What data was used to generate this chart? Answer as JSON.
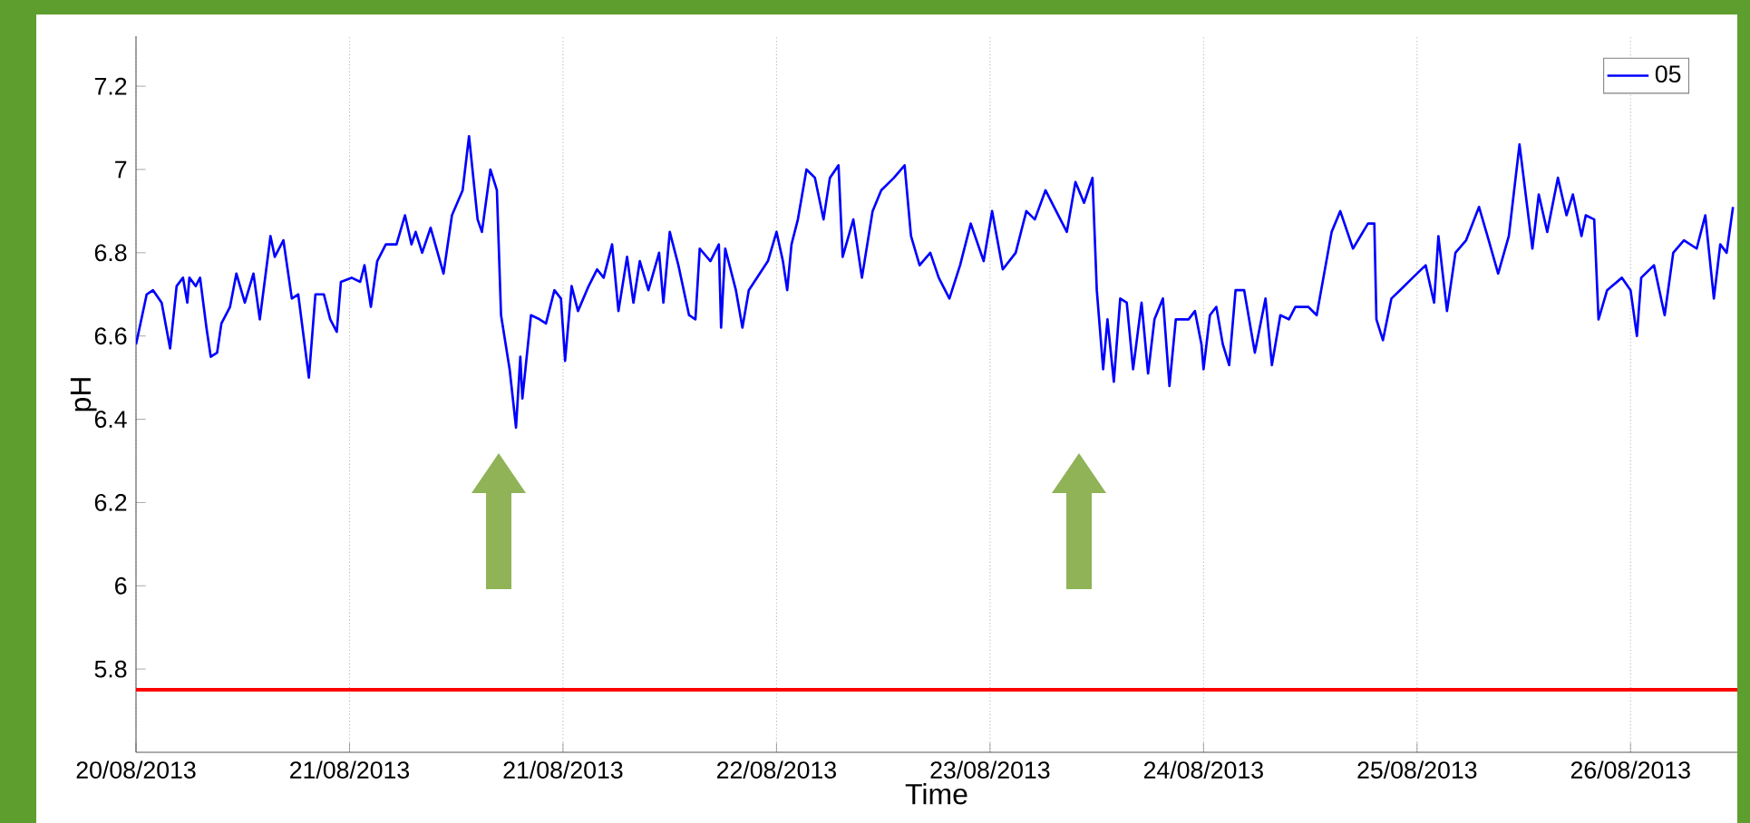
{
  "chart_data": {
    "type": "line",
    "xlabel": "Time",
    "ylabel": "pH",
    "xlim": [
      "2013-08-20T00:00",
      "2013-08-27T12:00"
    ],
    "ylim": [
      5.6,
      7.32
    ],
    "xticks": [
      {
        "value": "2013-08-20",
        "label": "20/08/2013"
      },
      {
        "value": "2013-08-21",
        "label": "21/08/2013"
      },
      {
        "value": "2013-08-22",
        "label": "21/08/2013"
      },
      {
        "value": "2013-08-23",
        "label": "22/08/2013"
      },
      {
        "value": "2013-08-24",
        "label": "23/08/2013"
      },
      {
        "value": "2013-08-25",
        "label": "24/08/2013"
      },
      {
        "value": "2013-08-26",
        "label": "25/08/2013"
      },
      {
        "value": "2013-08-27",
        "label": "26/08/2013"
      }
    ],
    "yticks": [
      5.8,
      6,
      6.2,
      6.4,
      6.6,
      6.8,
      7,
      7.2
    ],
    "grid": "x",
    "legend": "top right",
    "marker": "none",
    "line_style": "solid",
    "ref_lines": [
      {
        "axis": "y",
        "value": 5.75,
        "color": "#ff0000"
      }
    ],
    "series": [
      {
        "name": "05",
        "color": "#0000ff",
        "x": [
          "2013-08-20T00:00",
          "2013-08-20T01:12",
          "2013-08-20T01:55",
          "2013-08-20T02:53",
          "2013-08-20T03:50",
          "2013-08-20T04:34",
          "2013-08-20T05:17",
          "2013-08-20T05:46",
          "2013-08-20T06:00",
          "2013-08-20T06:43",
          "2013-08-20T07:12",
          "2013-08-20T07:55",
          "2013-08-20T08:24",
          "2013-08-20T09:07",
          "2013-08-20T09:36",
          "2013-08-20T10:34",
          "2013-08-20T11:17",
          "2013-08-20T12:14",
          "2013-08-20T13:12",
          "2013-08-20T13:55",
          "2013-08-20T15:07",
          "2013-08-20T15:36",
          "2013-08-20T16:34",
          "2013-08-20T17:31",
          "2013-08-20T18:14",
          "2013-08-20T19:26",
          "2013-08-20T20:10",
          "2013-08-20T21:07",
          "2013-08-20T21:50",
          "2013-08-20T22:34",
          "2013-08-20T23:02",
          "2013-08-21T00:14",
          "2013-08-21T01:12",
          "2013-08-21T01:41",
          "2013-08-21T02:24",
          "2013-08-21T03:07",
          "2013-08-21T04:05",
          "2013-08-21T05:17",
          "2013-08-21T06:14",
          "2013-08-21T06:58",
          "2013-08-21T07:26",
          "2013-08-21T08:10",
          "2013-08-21T09:07",
          "2013-08-21T10:34",
          "2013-08-21T11:31",
          "2013-08-21T12:43",
          "2013-08-21T13:26",
          "2013-08-21T14:24",
          "2013-08-21T14:53",
          "2013-08-21T15:50",
          "2013-08-21T16:34",
          "2013-08-21T17:02",
          "2013-08-21T18:00",
          "2013-08-21T18:43",
          "2013-08-21T19:12",
          "2013-08-21T19:26",
          "2013-08-21T20:24",
          "2013-08-21T21:22",
          "2013-08-21T22:05",
          "2013-08-21T23:02",
          "2013-08-21T23:46",
          "2013-08-22T00:14",
          "2013-08-22T00:58",
          "2013-08-22T01:41",
          "2013-08-22T02:53",
          "2013-08-22T03:50",
          "2013-08-22T04:34",
          "2013-08-22T05:31",
          "2013-08-22T06:14",
          "2013-08-22T07:12",
          "2013-08-22T07:55",
          "2013-08-22T08:38",
          "2013-08-22T09:36",
          "2013-08-22T10:48",
          "2013-08-22T11:17",
          "2013-08-22T12:00",
          "2013-08-22T12:58",
          "2013-08-22T14:10",
          "2013-08-22T14:53",
          "2013-08-22T15:22",
          "2013-08-22T16:34",
          "2013-08-22T17:31",
          "2013-08-22T17:46",
          "2013-08-22T18:14",
          "2013-08-22T19:26",
          "2013-08-22T20:10",
          "2013-08-22T20:53",
          "2013-08-22T23:02",
          "2013-08-23T00:00",
          "2013-08-23T00:43",
          "2013-08-23T01:12",
          "2013-08-23T01:41",
          "2013-08-23T02:24",
          "2013-08-23T03:22",
          "2013-08-23T04:19",
          "2013-08-23T05:17",
          "2013-08-23T06:00",
          "2013-08-23T06:58",
          "2013-08-23T07:26",
          "2013-08-23T08:38",
          "2013-08-23T09:36",
          "2013-08-23T10:48",
          "2013-08-23T11:46",
          "2013-08-23T13:12",
          "2013-08-23T14:24",
          "2013-08-23T15:07",
          "2013-08-23T16:05",
          "2013-08-23T17:17",
          "2013-08-23T18:14",
          "2013-08-23T19:26",
          "2013-08-23T20:38",
          "2013-08-23T21:50",
          "2013-08-23T23:17",
          "2013-08-24T00:14",
          "2013-08-24T01:26",
          "2013-08-24T02:53",
          "2013-08-24T04:05",
          "2013-08-24T05:02",
          "2013-08-24T06:14",
          "2013-08-24T07:26",
          "2013-08-24T08:38",
          "2013-08-24T09:36",
          "2013-08-24T10:34",
          "2013-08-24T11:31",
          "2013-08-24T12:00",
          "2013-08-24T12:43",
          "2013-08-24T13:12",
          "2013-08-24T13:55",
          "2013-08-24T14:38",
          "2013-08-24T15:22",
          "2013-08-24T16:05",
          "2013-08-24T17:02",
          "2013-08-24T17:46",
          "2013-08-24T18:29",
          "2013-08-24T19:26",
          "2013-08-24T20:10",
          "2013-08-24T20:53",
          "2013-08-24T21:50",
          "2013-08-24T22:19",
          "2013-08-24T23:02",
          "2013-08-24T23:46",
          "2013-08-25T00:00",
          "2013-08-25T00:43",
          "2013-08-25T01:26",
          "2013-08-25T02:10",
          "2013-08-25T02:53",
          "2013-08-25T03:36",
          "2013-08-25T04:34",
          "2013-08-25T05:46",
          "2013-08-25T06:58",
          "2013-08-25T07:41",
          "2013-08-25T08:38",
          "2013-08-25T09:36",
          "2013-08-25T10:19",
          "2013-08-25T11:46",
          "2013-08-25T12:43",
          "2013-08-25T14:24",
          "2013-08-25T15:22",
          "2013-08-25T16:48",
          "2013-08-25T18:29",
          "2013-08-25T19:12",
          "2013-08-25T19:26",
          "2013-08-25T20:10",
          "2013-08-25T21:07",
          "2013-08-25T22:05",
          "2013-08-25T23:31",
          "2013-08-26T00:58",
          "2013-08-26T01:55",
          "2013-08-26T02:24",
          "2013-08-26T03:22",
          "2013-08-26T04:19",
          "2013-08-26T05:31",
          "2013-08-26T06:58",
          "2013-08-26T07:55",
          "2013-08-26T09:07",
          "2013-08-26T10:19",
          "2013-08-26T11:31",
          "2013-08-26T12:58",
          "2013-08-26T13:41",
          "2013-08-26T14:38",
          "2013-08-26T15:50",
          "2013-08-26T16:48",
          "2013-08-26T17:31",
          "2013-08-26T18:29",
          "2013-08-26T18:58",
          "2013-08-26T19:55",
          "2013-08-26T20:24",
          "2013-08-26T21:22",
          "2013-08-26T23:02",
          "2013-08-27T00:00",
          "2013-08-27T00:43",
          "2013-08-27T01:12",
          "2013-08-27T02:38",
          "2013-08-27T03:50",
          "2013-08-27T04:48",
          "2013-08-27T06:00",
          "2013-08-27T07:26",
          "2013-08-27T08:24",
          "2013-08-27T09:22",
          "2013-08-27T10:05",
          "2013-08-27T10:48",
          "2013-08-27T11:31"
        ],
        "values": [
          6.58,
          6.7,
          6.71,
          6.68,
          6.57,
          6.72,
          6.74,
          6.68,
          6.74,
          6.72,
          6.74,
          6.62,
          6.55,
          6.56,
          6.63,
          6.67,
          6.75,
          6.68,
          6.75,
          6.64,
          6.84,
          6.79,
          6.83,
          6.69,
          6.7,
          6.5,
          6.7,
          6.7,
          6.64,
          6.61,
          6.73,
          6.74,
          6.73,
          6.77,
          6.67,
          6.78,
          6.82,
          6.82,
          6.89,
          6.82,
          6.85,
          6.8,
          6.86,
          6.75,
          6.89,
          6.95,
          7.08,
          6.88,
          6.85,
          7.0,
          6.95,
          6.65,
          6.52,
          6.38,
          6.55,
          6.45,
          6.65,
          6.64,
          6.63,
          6.71,
          6.69,
          6.54,
          6.72,
          6.66,
          6.72,
          6.76,
          6.74,
          6.82,
          6.66,
          6.79,
          6.68,
          6.78,
          6.71,
          6.8,
          6.68,
          6.85,
          6.77,
          6.65,
          6.64,
          6.81,
          6.78,
          6.82,
          6.62,
          6.81,
          6.71,
          6.62,
          6.71,
          6.78,
          6.85,
          6.78,
          6.71,
          6.82,
          6.88,
          7.0,
          6.98,
          6.88,
          6.98,
          7.01,
          6.79,
          6.88,
          6.74,
          6.9,
          6.95,
          6.98,
          7.01,
          6.84,
          6.77,
          6.8,
          6.74,
          6.69,
          6.77,
          6.87,
          6.78,
          6.9,
          6.76,
          6.8,
          6.9,
          6.88,
          6.95,
          6.9,
          6.85,
          6.97,
          6.92,
          6.98,
          6.71,
          6.52,
          6.64,
          6.49,
          6.69,
          6.68,
          6.52,
          6.68,
          6.51,
          6.64,
          6.69,
          6.48,
          6.64,
          6.64,
          6.64,
          6.66,
          6.58,
          6.52,
          6.65,
          6.67,
          6.58,
          6.53,
          6.71,
          6.71,
          6.56,
          6.69,
          6.53,
          6.65,
          6.64,
          6.67,
          6.67,
          6.65,
          6.85,
          6.9,
          6.81,
          6.87,
          6.87,
          6.64,
          6.59,
          6.69,
          6.71,
          6.74,
          6.77,
          6.68,
          6.84,
          6.66,
          6.8,
          6.83,
          6.91,
          6.84,
          6.75,
          6.84,
          7.06,
          6.81,
          6.94,
          6.85,
          6.98,
          6.89,
          6.94,
          6.84,
          6.89,
          6.88,
          6.64,
          6.71,
          6.74,
          6.71,
          6.6,
          6.74,
          6.77,
          6.65,
          6.8,
          6.83,
          6.81,
          6.89,
          6.69,
          6.82,
          6.8,
          6.91
        ]
      }
    ]
  }
}
